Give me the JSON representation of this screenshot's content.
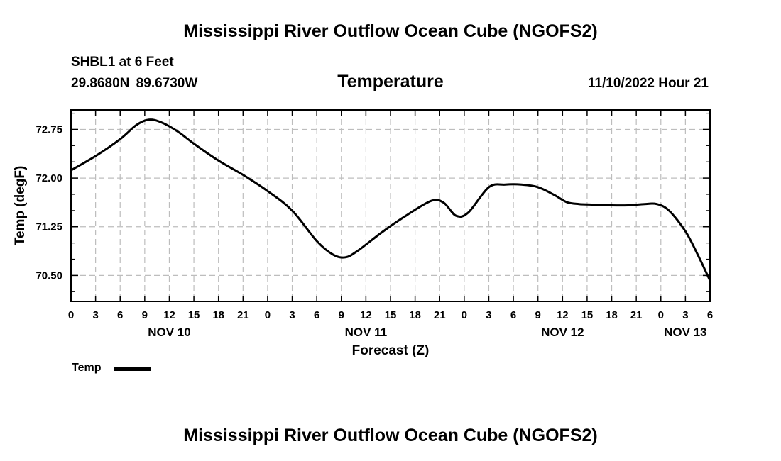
{
  "page": {
    "title_top": "Mississippi River Outflow Ocean Cube (NGOFS2)",
    "title_bottom": "Mississippi River Outflow Ocean Cube (NGOFS2)",
    "station": "SHBL1 at 6 Feet",
    "coordinates": "29.8680N  89.6730W",
    "parameter": "Temperature",
    "datetime": "11/10/2022 Hour 21"
  },
  "legend": {
    "label": "Temp",
    "color": "#000000"
  },
  "chart_data": {
    "type": "line",
    "title": "Temperature",
    "xlabel": "Forecast (Z)",
    "ylabel": "Temp (degF)",
    "xlim": [
      0,
      78
    ],
    "ylim": [
      70.1,
      73.05
    ],
    "x_ticks": [
      0,
      3,
      6,
      9,
      12,
      15,
      18,
      21,
      24,
      27,
      30,
      33,
      36,
      39,
      42,
      45,
      48,
      51,
      54,
      57,
      60,
      63,
      66,
      69,
      72,
      75,
      78
    ],
    "x_tick_labels": [
      "0",
      "3",
      "6",
      "9",
      "12",
      "15",
      "18",
      "21",
      "0",
      "3",
      "6",
      "9",
      "12",
      "15",
      "18",
      "21",
      "0",
      "3",
      "6",
      "9",
      "12",
      "15",
      "18",
      "21",
      "0",
      "3",
      "6"
    ],
    "day_labels": [
      {
        "x": 12,
        "label": "NOV 10"
      },
      {
        "x": 36,
        "label": "NOV 11"
      },
      {
        "x": 60,
        "label": "NOV 12"
      },
      {
        "x": 75,
        "label": "NOV 13"
      }
    ],
    "y_ticks": [
      70.5,
      71.25,
      72.0,
      72.75
    ],
    "y_tick_labels": [
      "70.50",
      "71.25",
      "72.00",
      "72.75"
    ],
    "grid": true,
    "series": [
      {
        "name": "Temp",
        "color": "#000000",
        "x": [
          0,
          3,
          6,
          8,
          9.5,
          11,
          13,
          15,
          18,
          21,
          24,
          27,
          30,
          32,
          33.5,
          35,
          38,
          41,
          44,
          45.5,
          47,
          48.5,
          51,
          53,
          55,
          57,
          59,
          60.5,
          62,
          64,
          66,
          68,
          70,
          71.5,
          73,
          75,
          76.5,
          78
        ],
        "y": [
          72.12,
          72.34,
          72.6,
          72.82,
          72.9,
          72.86,
          72.72,
          72.53,
          72.27,
          72.05,
          71.8,
          71.5,
          71.03,
          70.82,
          70.78,
          70.88,
          71.17,
          71.43,
          71.65,
          71.62,
          71.42,
          71.47,
          71.86,
          71.9,
          71.9,
          71.86,
          71.74,
          71.63,
          71.6,
          71.59,
          71.58,
          71.58,
          71.6,
          71.6,
          71.5,
          71.18,
          70.82,
          70.42
        ]
      }
    ]
  }
}
